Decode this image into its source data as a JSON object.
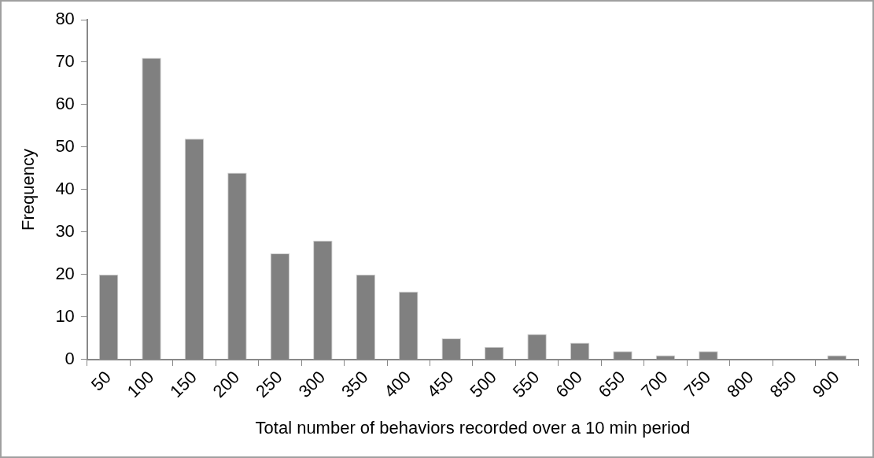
{
  "chart_data": {
    "type": "bar",
    "xlabel": "Total number of behaviors recorded over a 10 min period",
    "ylabel": "Frequency",
    "categories": [
      "50",
      "100",
      "150",
      "200",
      "250",
      "300",
      "350",
      "400",
      "450",
      "500",
      "550",
      "600",
      "650",
      "700",
      "750",
      "800",
      "850",
      "900"
    ],
    "values": [
      20,
      71,
      52,
      44,
      25,
      28,
      20,
      16,
      5,
      3,
      6,
      4,
      2,
      1,
      2,
      0,
      0,
      1
    ],
    "color": "#808080",
    "ylim": [
      0,
      80
    ],
    "yticks": [
      0,
      10,
      20,
      30,
      40,
      50,
      60,
      70,
      80
    ],
    "grid": false,
    "legend": false
  }
}
